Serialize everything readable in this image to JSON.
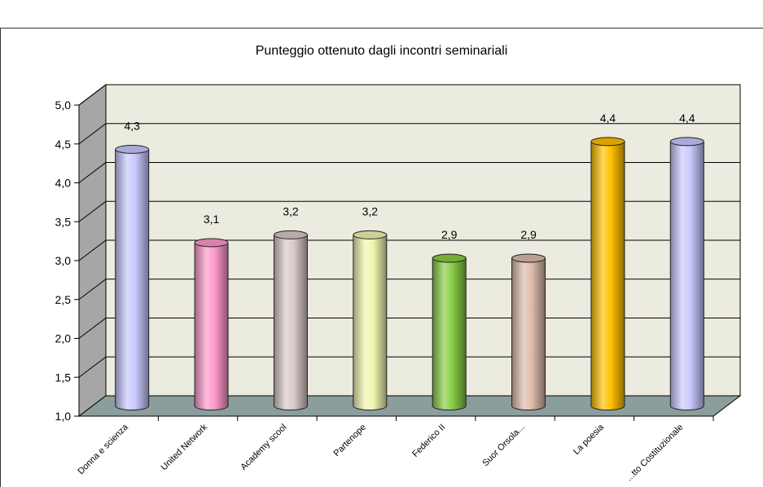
{
  "chart_data": {
    "type": "bar",
    "style": "3d-cylinder",
    "title": "Punteggio ottenuto dagli incontri seminariali",
    "categories": [
      "Donna e scienza",
      "United Network",
      "Academy scool",
      "Partenope",
      "Federico II",
      "Suor Orsola...",
      "La poesia",
      "...tto Costituzionale"
    ],
    "values": [
      4.3,
      3.1,
      3.2,
      3.2,
      2.9,
      2.9,
      4.4,
      4.4
    ],
    "value_labels": [
      "4,3",
      "3,1",
      "3,2",
      "3,2",
      "2,9",
      "2,9",
      "4,4",
      "4,4"
    ],
    "ylim": [
      1.0,
      5.0
    ],
    "yticks": [
      "1,0",
      "1,5",
      "2,0",
      "2,5",
      "3,0",
      "3,5",
      "4,0",
      "4,5",
      "5,0"
    ],
    "grid": true,
    "legend": "none",
    "colors": [
      "#c8c8ff",
      "#ff99cc",
      "#d9c8c8",
      "#f0f5b0",
      "#88cc44",
      "#ddbbaa",
      "#ffc000",
      "#c8c8ff"
    ],
    "wall_color": "#ecebdf",
    "floor_color": "#8c9d9d",
    "side_wall_color": "#a6a6a6"
  }
}
